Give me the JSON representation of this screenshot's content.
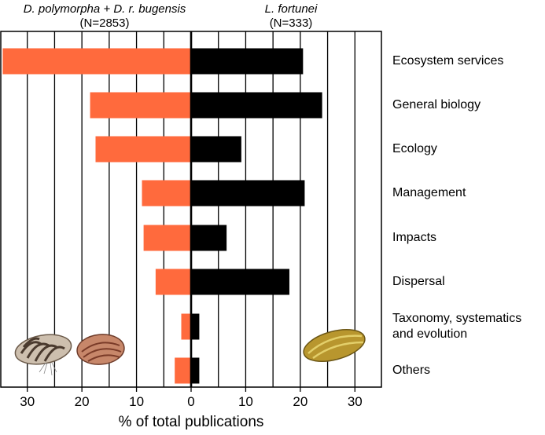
{
  "chart_data": {
    "type": "bar",
    "orientation": "horizontal-diverging",
    "left_series": {
      "name": "D. polymorpha + D. r. bugensis",
      "n_label": "(N=2853)",
      "color": "#FF6A3D"
    },
    "right_series": {
      "name": "L. fortunei",
      "n_label": "(N=333)",
      "color": "#000000"
    },
    "categories": [
      "Ecosystem services",
      "General biology",
      "Ecology",
      "Management",
      "Impacts",
      "Dispersal",
      "Taxonomy, systematics and evolution",
      "Others"
    ],
    "category_lines": [
      [
        "Ecosystem services"
      ],
      [
        "General biology"
      ],
      [
        "Ecology"
      ],
      [
        "Management"
      ],
      [
        "Impacts"
      ],
      [
        "Dispersal"
      ],
      [
        "Taxonomy, systematics",
        "and evolution"
      ],
      [
        "Others"
      ]
    ],
    "series": [
      {
        "name": "D. polymorpha + D. r. bugensis",
        "values": [
          34.5,
          18.5,
          17.5,
          9.0,
          8.7,
          6.5,
          1.8,
          3.0
        ]
      },
      {
        "name": "L. fortunei",
        "values": [
          20.5,
          24.0,
          9.2,
          20.8,
          6.5,
          18.0,
          1.5,
          1.5
        ]
      }
    ],
    "xlabel": "% of total publications",
    "xlim": [
      -35,
      35
    ],
    "xticks": [
      -30,
      -20,
      -10,
      0,
      10,
      20,
      30
    ],
    "xtick_labels": [
      "30",
      "20",
      "10",
      "0",
      "10",
      "20",
      "30"
    ],
    "gridlines": [
      -30,
      -25,
      -20,
      -15,
      -10,
      -5,
      5,
      10,
      15,
      20,
      25,
      30
    ]
  },
  "header": {
    "left_species": "D. polymorpha + D. r. bugensis",
    "left_n": "(N=2853)",
    "right_species": "L. fortunei",
    "right_n": "(N=333)"
  },
  "icons": {
    "left": [
      "zebra-mussel-icon",
      "quagga-mussel-icon"
    ],
    "right": [
      "golden-mussel-icon"
    ]
  }
}
